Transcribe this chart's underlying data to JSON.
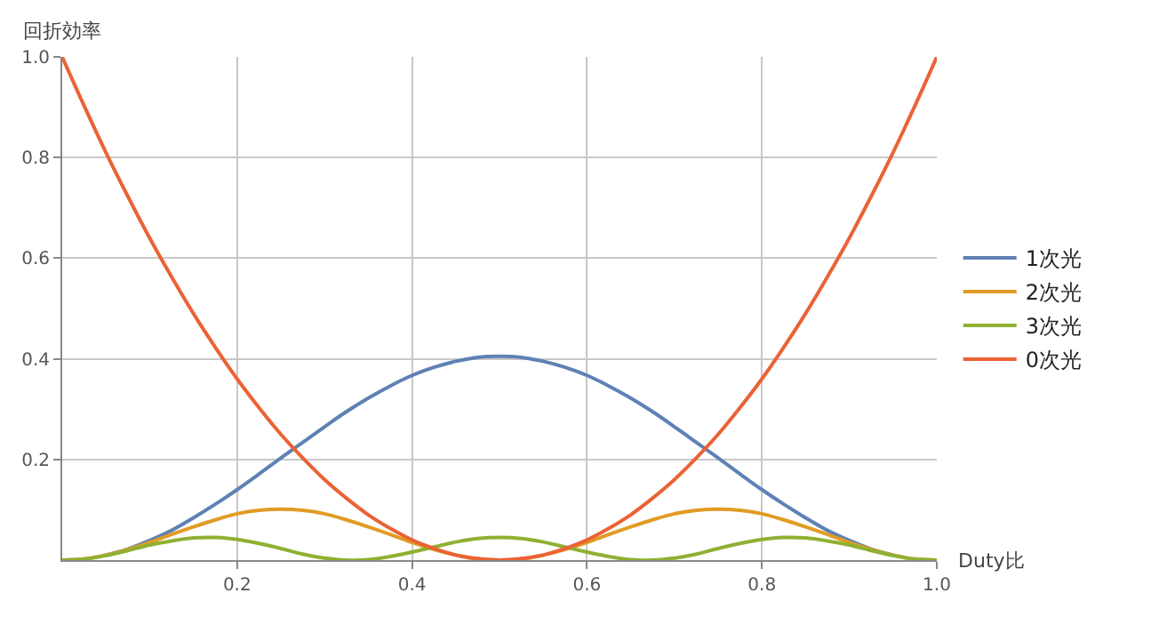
{
  "chart_data": {
    "type": "line",
    "xlabel": "Duty比",
    "ylabel": "回折効率",
    "x": [
      0,
      0.025,
      0.05,
      0.075,
      0.1,
      0.125,
      0.15,
      0.175,
      0.2,
      0.225,
      0.25,
      0.275,
      0.3,
      0.325,
      0.35,
      0.375,
      0.4,
      0.425,
      0.45,
      0.475,
      0.5,
      0.525,
      0.55,
      0.575,
      0.6,
      0.625,
      0.65,
      0.675,
      0.7,
      0.725,
      0.75,
      0.775,
      0.8,
      0.825,
      0.85,
      0.875,
      0.9,
      0.925,
      0.95,
      0.975,
      1
    ],
    "series": [
      {
        "name": "1次光",
        "color": "#5e81b5",
        "values": [
          null,
          null,
          0.01,
          0.022,
          0.039,
          0.059,
          0.084,
          0.111,
          0.14,
          0.171,
          0.203,
          0.234,
          0.265,
          0.295,
          0.322,
          0.346,
          0.367,
          0.383,
          0.395,
          0.403,
          0.405,
          0.403,
          0.395,
          0.383,
          0.367,
          0.346,
          0.322,
          0.295,
          0.265,
          0.234,
          0.203,
          0.171,
          0.14,
          0.111,
          0.084,
          0.059,
          0.039,
          0.022,
          0.01,
          null,
          null
        ]
      },
      {
        "name": "2次光",
        "color": "#e19c24",
        "values": [
          0,
          0.002,
          0.01,
          0.021,
          0.035,
          0.051,
          0.066,
          0.08,
          0.092,
          0.099,
          0.101,
          0.099,
          0.092,
          0.08,
          0.066,
          0.051,
          0.035,
          0.021,
          0.01,
          0.002,
          0,
          0.002,
          0.01,
          0.021,
          0.035,
          0.051,
          0.066,
          0.08,
          0.092,
          0.099,
          0.101,
          0.099,
          0.092,
          0.08,
          0.066,
          0.051,
          0.035,
          0.021,
          0.01,
          0.002,
          0
        ]
      },
      {
        "name": "3次光",
        "color": "#8fb032",
        "values": [
          0,
          0.002,
          0.009,
          0.019,
          0.03,
          0.038,
          0.044,
          0.045,
          0.041,
          0.033,
          0.023,
          0.012,
          0.004,
          0.0,
          0.001,
          0.007,
          0.016,
          0.026,
          0.036,
          0.043,
          0.045,
          0.043,
          0.036,
          0.026,
          0.016,
          0.007,
          0.001,
          0.0,
          0.004,
          0.012,
          0.023,
          0.033,
          0.041,
          0.045,
          0.044,
          0.038,
          0.03,
          0.019,
          0.009,
          0.002,
          0
        ]
      },
      {
        "name": "0次光",
        "color": "#eb6235",
        "values": [
          1,
          0.903,
          0.81,
          0.723,
          0.64,
          0.563,
          0.49,
          0.423,
          0.36,
          0.303,
          0.25,
          0.203,
          0.16,
          0.123,
          0.09,
          0.063,
          0.04,
          0.023,
          0.01,
          0.003,
          0,
          0.003,
          0.01,
          0.023,
          0.04,
          0.063,
          0.09,
          0.123,
          0.16,
          0.203,
          0.25,
          0.303,
          0.36,
          0.423,
          0.49,
          0.563,
          0.64,
          0.723,
          0.81,
          0.903,
          1
        ]
      }
    ],
    "xlim": [
      0,
      1
    ],
    "ylim": [
      0,
      1
    ],
    "xticks": [
      {
        "value": 0.2,
        "label": "0.2"
      },
      {
        "value": 0.4,
        "label": "0.4"
      },
      {
        "value": 0.6,
        "label": "0.6"
      },
      {
        "value": 0.8,
        "label": "0.8"
      },
      {
        "value": 1,
        "label": "1.0"
      }
    ],
    "yticks": [
      {
        "value": 0.2,
        "label": "0.2"
      },
      {
        "value": 0.4,
        "label": "0.4"
      },
      {
        "value": 0.6,
        "label": "0.6"
      },
      {
        "value": 0.8,
        "label": "0.8"
      },
      {
        "value": 1,
        "label": "1.0"
      }
    ],
    "grid": true,
    "legend": "right",
    "marker": "none",
    "line_style": "solid"
  }
}
